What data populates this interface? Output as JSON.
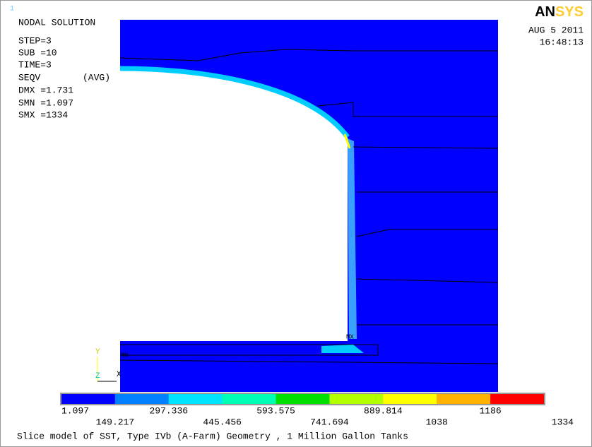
{
  "window_number": "1",
  "logo": {
    "bold": "AN",
    "faded": "SYS"
  },
  "info": {
    "title": "NODAL SOLUTION",
    "lines": [
      "STEP=3",
      "SUB =10",
      "TIME=3"
    ],
    "result": "SEQV",
    "avg": "(AVG)",
    "stats": [
      "DMX =1.731",
      "SMN =1.097",
      "SMX =1334"
    ]
  },
  "date": "AUG  5 2011",
  "time": "16:48:13",
  "markers": {
    "max": "MX",
    "min": "MN"
  },
  "triad": {
    "y": "Y",
    "z": "Z",
    "x": "X"
  },
  "legend": {
    "colors": [
      "#0000ff",
      "#0080ff",
      "#00e5ff",
      "#00ffb2",
      "#00e000",
      "#b2ff00",
      "#ffff00",
      "#ffb200",
      "#ff0000"
    ],
    "labels": [
      "1.097",
      "149.217",
      "297.336",
      "445.456",
      "593.575",
      "741.694",
      "889.814",
      "1038",
      "1186",
      "1334"
    ]
  },
  "footer": "Slice model of SST, Type IVb (A-Farm) Geometry , 1 Million Gallon Tanks"
}
